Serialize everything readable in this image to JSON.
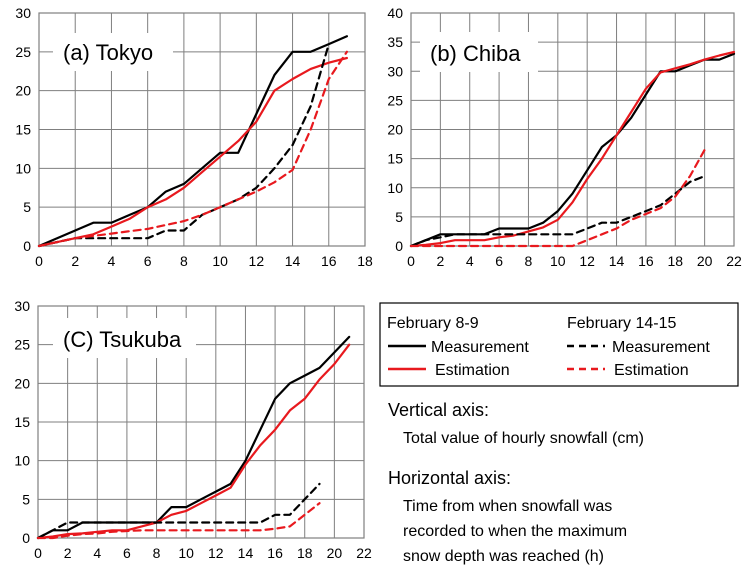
{
  "chart_data": [
    {
      "type": "line",
      "title": "(a) Tokyo",
      "xlim": [
        0,
        18
      ],
      "ylim": [
        0,
        30
      ],
      "xticks": [
        0,
        2,
        4,
        6,
        8,
        10,
        12,
        14,
        16,
        18
      ],
      "yticks": [
        0,
        5,
        10,
        15,
        20,
        25,
        30
      ],
      "grid": true,
      "series": [
        {
          "name": "February 8-9 Measurement",
          "color": "#000000",
          "dash": "solid",
          "x": [
            0,
            1,
            2,
            3,
            4,
            5,
            6,
            7,
            8,
            9,
            10,
            11,
            12,
            13,
            14,
            15,
            16,
            17
          ],
          "y": [
            0,
            1,
            2,
            3,
            3,
            4,
            5,
            7,
            8,
            10,
            12,
            12,
            17,
            22,
            25,
            25,
            26,
            27
          ]
        },
        {
          "name": "February 8-9 Estimation",
          "color": "#e8191e",
          "dash": "solid",
          "x": [
            0,
            1,
            2,
            3,
            4,
            5,
            6,
            7,
            8,
            9,
            10,
            11,
            12,
            13,
            14,
            15,
            16,
            17
          ],
          "y": [
            0,
            0.5,
            1,
            1.5,
            2.5,
            3.5,
            5,
            6,
            7.5,
            9.5,
            11.5,
            13.5,
            16,
            20,
            21.5,
            22.8,
            23.6,
            24.2
          ]
        },
        {
          "name": "February 14-15 Measurement",
          "color": "#000000",
          "dash": "dashed",
          "x": [
            0,
            1,
            2,
            3,
            4,
            5,
            6,
            7,
            8,
            9,
            10,
            11,
            12,
            13,
            14,
            15,
            16
          ],
          "y": [
            0,
            0.5,
            1,
            1,
            1,
            1,
            1,
            2,
            2,
            4,
            5,
            6,
            7.5,
            10,
            13,
            18,
            26
          ]
        },
        {
          "name": "February 14-15 Estimation",
          "color": "#e8191e",
          "dash": "dashed",
          "x": [
            0,
            1,
            2,
            3,
            4,
            5,
            6,
            7,
            8,
            9,
            10,
            11,
            12,
            13,
            14,
            15,
            16,
            17
          ],
          "y": [
            0,
            0.5,
            1,
            1.3,
            1.6,
            1.9,
            2.2,
            2.7,
            3.2,
            4,
            5,
            6,
            7,
            8.2,
            9.8,
            15,
            21.5,
            25
          ]
        }
      ]
    },
    {
      "type": "line",
      "title": "(b) Chiba",
      "xlim": [
        0,
        22
      ],
      "ylim": [
        0,
        40
      ],
      "xticks": [
        0,
        2,
        4,
        6,
        8,
        10,
        12,
        14,
        16,
        18,
        20,
        22
      ],
      "yticks": [
        0,
        5,
        10,
        15,
        20,
        25,
        30,
        35,
        40
      ],
      "grid": true,
      "series": [
        {
          "name": "February 8-9 Measurement",
          "color": "#000000",
          "dash": "solid",
          "x": [
            0,
            1,
            2,
            3,
            4,
            5,
            6,
            7,
            8,
            9,
            10,
            11,
            12,
            13,
            14,
            15,
            16,
            17,
            18,
            19,
            20,
            21,
            22
          ],
          "y": [
            0,
            1,
            2,
            2,
            2,
            2,
            3,
            3,
            3,
            4,
            6,
            9,
            13,
            17,
            19,
            22,
            26,
            30,
            30,
            31,
            32,
            32,
            33
          ]
        },
        {
          "name": "February 8-9 Estimation",
          "color": "#e8191e",
          "dash": "solid",
          "x": [
            0,
            1,
            2,
            3,
            4,
            5,
            6,
            7,
            8,
            9,
            10,
            11,
            12,
            13,
            14,
            15,
            16,
            17,
            18,
            19,
            20,
            21,
            22
          ],
          "y": [
            0,
            0.2,
            0.5,
            1,
            1,
            1,
            1.5,
            1.8,
            2.5,
            3.2,
            4.5,
            7.5,
            11.5,
            15,
            19,
            23,
            27,
            29.8,
            30.5,
            31.2,
            32,
            32.7,
            33.3
          ]
        },
        {
          "name": "February 14-15 Measurement",
          "color": "#000000",
          "dash": "dashed",
          "x": [
            0,
            1,
            2,
            3,
            4,
            5,
            6,
            7,
            8,
            9,
            10,
            11,
            12,
            13,
            14,
            15,
            16,
            17,
            18,
            19,
            20
          ],
          "y": [
            0,
            1,
            1.5,
            2,
            2,
            2,
            2,
            2,
            2,
            2,
            2,
            2,
            3,
            4,
            4,
            5,
            6,
            7,
            9,
            11,
            12
          ]
        },
        {
          "name": "February 14-15 Estimation",
          "color": "#e8191e",
          "dash": "dashed",
          "x": [
            0,
            1,
            2,
            3,
            4,
            5,
            6,
            7,
            8,
            9,
            10,
            11,
            12,
            13,
            14,
            15,
            16,
            17,
            18,
            19,
            20
          ],
          "y": [
            0,
            0,
            0,
            0,
            0,
            0,
            0,
            0,
            0,
            0,
            0,
            0,
            1,
            2,
            3,
            4.5,
            5.5,
            6.5,
            8.5,
            12,
            16.5
          ]
        }
      ]
    },
    {
      "type": "line",
      "title": "(C) Tsukuba",
      "xlim": [
        0,
        22
      ],
      "ylim": [
        0,
        30
      ],
      "xticks": [
        0,
        2,
        4,
        6,
        8,
        10,
        12,
        14,
        16,
        18,
        20,
        22
      ],
      "yticks": [
        0,
        5,
        10,
        15,
        20,
        25,
        30
      ],
      "grid": true,
      "series": [
        {
          "name": "February 8-9 Measurement",
          "color": "#000000",
          "dash": "solid",
          "x": [
            0,
            1,
            2,
            3,
            4,
            5,
            6,
            7,
            8,
            9,
            10,
            11,
            12,
            13,
            14,
            15,
            16,
            17,
            18,
            19,
            20,
            21
          ],
          "y": [
            0,
            1,
            1,
            2,
            2,
            2,
            2,
            2,
            2,
            4,
            4,
            5,
            6,
            7,
            10,
            14,
            18,
            20,
            21,
            22,
            24,
            26
          ]
        },
        {
          "name": "February 8-9 Estimation",
          "color": "#e8191e",
          "dash": "solid",
          "x": [
            0,
            1,
            2,
            3,
            4,
            5,
            6,
            7,
            8,
            9,
            10,
            11,
            12,
            13,
            14,
            15,
            16,
            17,
            18,
            19,
            20,
            21
          ],
          "y": [
            0,
            0.2,
            0.5,
            0.6,
            0.8,
            1,
            1,
            1.5,
            2,
            3,
            3.5,
            4.5,
            5.5,
            6.5,
            9.5,
            12,
            14,
            16.5,
            18,
            20.5,
            22.5,
            25
          ]
        },
        {
          "name": "February 14-15 Measurement",
          "color": "#000000",
          "dash": "dashed",
          "x": [
            0,
            1,
            2,
            3,
            4,
            5,
            6,
            7,
            8,
            9,
            10,
            11,
            12,
            13,
            14,
            15,
            16,
            17,
            18,
            19
          ],
          "y": [
            0,
            1,
            2,
            2,
            2,
            2,
            2,
            2,
            2,
            2,
            2,
            2,
            2,
            2,
            2,
            2,
            3,
            3,
            5,
            7
          ]
        },
        {
          "name": "February 14-15 Estimation",
          "color": "#e8191e",
          "dash": "dashed",
          "x": [
            0,
            1,
            2,
            3,
            4,
            5,
            6,
            7,
            8,
            9,
            10,
            11,
            12,
            13,
            14,
            15,
            16,
            17,
            18,
            19
          ],
          "y": [
            0,
            0,
            0.3,
            0.5,
            0.6,
            0.8,
            0.9,
            1,
            1,
            1,
            1,
            1,
            1,
            1,
            1,
            1,
            1.2,
            1.5,
            3,
            4.5
          ]
        }
      ]
    }
  ],
  "legend": {
    "group1_title": "February 8-9",
    "group2_title": "February 14-15",
    "measurement_label": "Measurement",
    "estimation_label": "Estimation"
  },
  "notes": {
    "vertical_heading": "Vertical axis:",
    "vertical_text": "Total value of hourly snowfall (cm)",
    "horizontal_heading": "Horizontal axis:",
    "horizontal_line1": "Time from when snowfall was",
    "horizontal_line2": "recorded to when the maximum",
    "horizontal_line3": "snow depth was reached (h)"
  }
}
